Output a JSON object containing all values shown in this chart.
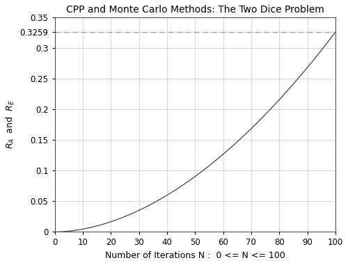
{
  "title": "CPP and Monte Carlo Methods: The Two Dice Problem",
  "xlabel": "Number of Iterations N :  0 <= N <= 100",
  "xlim": [
    0,
    100
  ],
  "ylim": [
    0,
    0.35
  ],
  "xticks": [
    0,
    10,
    20,
    30,
    40,
    50,
    60,
    70,
    80,
    90,
    100
  ],
  "yticks": [
    0,
    0.05,
    0.1,
    0.15,
    0.2,
    0.25,
    0.3,
    0.35
  ],
  "ytick_labels": [
    "0",
    "0.05",
    "0.1",
    "0.15",
    "0.2",
    "0.25",
    "0.3",
    "0.35"
  ],
  "hline_y": 0.3259,
  "convergence_value": 0.3259,
  "curve_exponent": 1.85,
  "line_color": "#555555",
  "dashed_line_color": "#999999",
  "grid_color": "#d0d0d0",
  "background_color": "#ffffff",
  "title_fontsize": 10,
  "label_fontsize": 9,
  "tick_fontsize": 8.5
}
